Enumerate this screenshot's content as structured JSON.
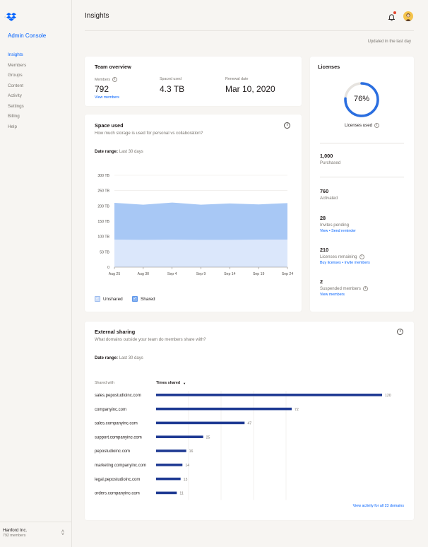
{
  "sidebar": {
    "console_title": "Admin Console",
    "items": [
      {
        "label": "Insights",
        "active": true
      },
      {
        "label": "Members"
      },
      {
        "label": "Groups"
      },
      {
        "label": "Content"
      },
      {
        "label": "Activity"
      },
      {
        "label": "Settings"
      },
      {
        "label": "Billing"
      },
      {
        "label": "Help"
      }
    ],
    "org_name": "Hanford Inc.",
    "org_members": "792 members"
  },
  "header": {
    "title": "Insights",
    "updated": "Updated in the last day"
  },
  "team_overview": {
    "title": "Team overview",
    "members_label": "Members",
    "members_value": "792",
    "view_members": "View members",
    "space_label": "Spaced used",
    "space_value": "4.3 TB",
    "renewal_label": "Renewal date",
    "renewal_value": "Mar 10, 2020"
  },
  "space_used": {
    "title": "Space used",
    "subtitle": "How much storage is used for personal vs collaboration?",
    "date_range_label": "Date range:",
    "date_range_value": "Last 30 days",
    "legend_unshared": "Unshared",
    "legend_shared": "Shared"
  },
  "licenses": {
    "title": "Licenses",
    "percent": 76,
    "percent_label": "76%",
    "used_label": "Licenses used",
    "purchased_value": "1,000",
    "purchased_label": "Purchased",
    "activated_value": "760",
    "activated_label": "Activated",
    "pending_value": "28",
    "pending_label": "Invites pending",
    "pending_links": "View • Send reminder",
    "remaining_value": "210",
    "remaining_label": "Licenses remaining",
    "remaining_links": "Buy licenses • Invite members",
    "suspended_value": "2",
    "suspended_label": "Suspended members",
    "suspended_link": "View members"
  },
  "external_sharing": {
    "title": "External sharing",
    "subtitle": "What domains outside your team do members share with?",
    "date_range_label": "Date range:",
    "date_range_value": "Last 30 days",
    "col_domain": "Shared with",
    "col_times": "Times shared",
    "footer_link": "View activity for all 23 domains"
  },
  "colors": {
    "accent": "#0061fe",
    "shared_area": "#a8c8f5",
    "unshared_area": "#dbe7fb",
    "bar": "#1f3a93",
    "ring": "#2a6ee0"
  },
  "chart_data": [
    {
      "type": "area",
      "x": [
        "Aug 25",
        "Aug 30",
        "Sep 4",
        "Sep 9",
        "Sep 14",
        "Sep 19",
        "Sep 24"
      ],
      "series": [
        {
          "name": "Unshared",
          "values": [
            90,
            89,
            90,
            89,
            89,
            90,
            90
          ]
        },
        {
          "name": "Shared",
          "values": [
            210,
            204,
            211,
            204,
            208,
            205,
            209
          ]
        }
      ],
      "y_ticks": [
        "0",
        "50 TB",
        "100 TB",
        "150 TB",
        "200 TB",
        "250 TB",
        "300 TB"
      ],
      "ylim": [
        0,
        300
      ],
      "stacked": false,
      "grid": true
    },
    {
      "type": "bar",
      "orientation": "horizontal",
      "categories": [
        "sales.pepostudioinc.com",
        "companyinc.com",
        "sales.companyinc.com",
        "support.companyinc.com",
        "pepostudioinc.com",
        "marketing.companyinc.com",
        "legal.pepostudioinc.com",
        "orders.companyinc.com"
      ],
      "values": [
        120,
        72,
        47,
        25,
        16,
        14,
        13,
        11
      ],
      "value_labels": [
        "120",
        "72",
        "47",
        "25",
        "16",
        "14",
        "13",
        "11"
      ]
    }
  ]
}
